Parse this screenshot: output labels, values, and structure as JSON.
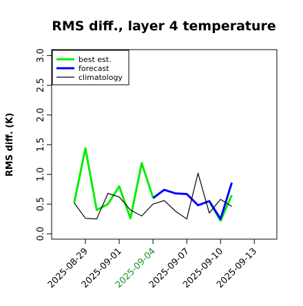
{
  "chart_data": {
    "type": "line",
    "title": "RMS diff., layer 4 temperature",
    "y_label": "RMS diff. (K)",
    "x": [
      "2025-08-28",
      "2025-08-29",
      "2025-08-30",
      "2025-08-31",
      "2025-09-01",
      "2025-09-02",
      "2025-09-03",
      "2025-09-04",
      "2025-09-05",
      "2025-09-06",
      "2025-09-07",
      "2025-09-08",
      "2025-09-09",
      "2025-09-10",
      "2025-09-11"
    ],
    "series": [
      {
        "name": "best est.",
        "color": "#00ee00",
        "width": 3,
        "values": [
          0.52,
          1.44,
          0.4,
          0.5,
          0.8,
          0.26,
          1.19,
          0.61,
          null,
          null,
          null,
          null,
          0.55,
          0.22,
          0.65
        ]
      },
      {
        "name": "forecast",
        "color": "#0000ff",
        "width": 3,
        "values": [
          null,
          null,
          null,
          null,
          null,
          null,
          null,
          0.6,
          0.74,
          0.68,
          0.67,
          0.48,
          0.55,
          0.25,
          0.86
        ]
      },
      {
        "name": "climatology",
        "color": "#000000",
        "width": 1.2,
        "values": [
          0.52,
          0.26,
          0.25,
          0.68,
          0.62,
          0.4,
          0.3,
          0.5,
          0.56,
          0.38,
          0.25,
          1.02,
          0.35,
          0.58,
          0.46
        ]
      }
    ],
    "xlim": [
      "2025-08-26",
      "2025-09-15"
    ],
    "xticks": [
      "2025-08-29",
      "2025-09-01",
      "2025-09-04",
      "2025-09-07",
      "2025-09-10",
      "2025-09-13"
    ],
    "xtick_label_colors": [
      "#000000",
      "#000000",
      "#228b22",
      "#000000",
      "#000000",
      "#000000"
    ],
    "ylim": [
      -0.09,
      3.1
    ],
    "yticks": [
      {
        "value": 0,
        "label": "0.0"
      },
      {
        "value": 0.5,
        "label": "0.5"
      },
      {
        "value": 1,
        "label": "1.0"
      },
      {
        "value": 1.5,
        "label": "1.5"
      },
      {
        "value": 2,
        "label": "2.0"
      },
      {
        "value": 2.5,
        "label": "2.5"
      },
      {
        "value": 3,
        "label": "3.0"
      }
    ],
    "legend": "top-left"
  }
}
